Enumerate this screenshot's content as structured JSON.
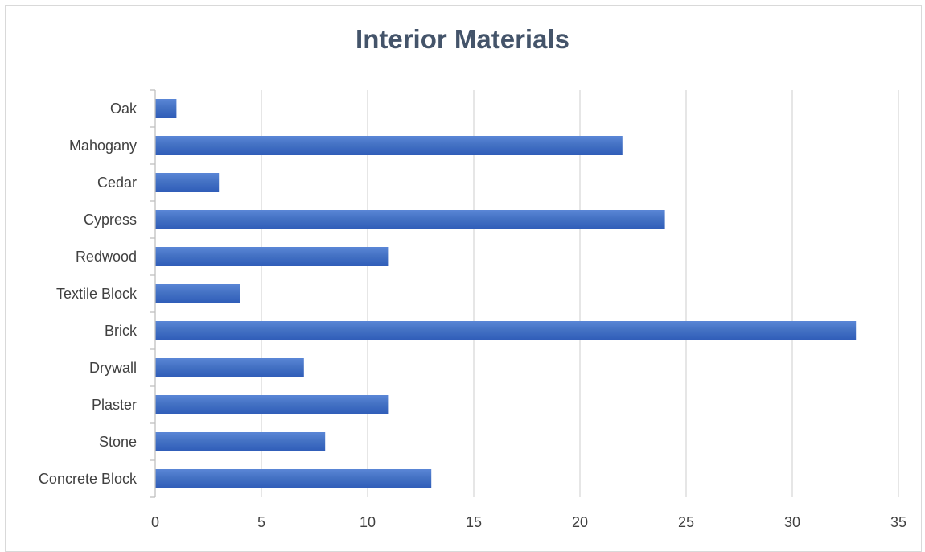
{
  "chart_data": {
    "type": "bar",
    "orientation": "horizontal",
    "title": "Interior Materials",
    "xlabel": "",
    "ylabel": "",
    "categories": [
      "Concrete Block",
      "Stone",
      "Plaster ",
      "Drywall",
      "Brick",
      "Textile Block ",
      "Redwood",
      "Cypress",
      "Cedar",
      "Mahogany",
      "Oak"
    ],
    "values": [
      13,
      8,
      11,
      7,
      33,
      4,
      11,
      24,
      3,
      22,
      1
    ],
    "xlim": [
      0,
      35
    ],
    "xticks": [
      0,
      5,
      10,
      15,
      20,
      25,
      30,
      35
    ],
    "grid": true,
    "legend": "none",
    "bar_color": "#4472c4",
    "bar_color_dark": "#2f5cb8"
  }
}
